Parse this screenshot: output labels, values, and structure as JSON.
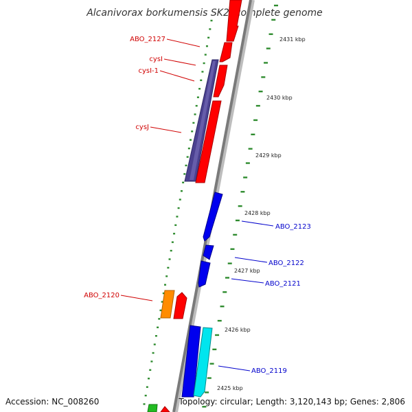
{
  "title": "Alcanivorax borkumensis SK2, complete genome",
  "accession": "Accession: NC_008260",
  "topology": "Topology: circular; Length: 3,120,143 bp; Genes: 2,806",
  "colors": {
    "backbone": "#808080",
    "tick": "#2e8b2e",
    "forward_label": "#d00000",
    "reverse_label": "#0000cc"
  },
  "ticks": [
    {
      "label": "2431 kbp"
    },
    {
      "label": "2430 kbp"
    },
    {
      "label": "2429 kbp"
    },
    {
      "label": "2428 kbp"
    },
    {
      "label": "2427 kbp"
    },
    {
      "label": "2426 kbp"
    },
    {
      "label": "2425 kbp"
    }
  ],
  "labels": [
    {
      "text": "ABO_2127",
      "color": "#d00000"
    },
    {
      "text": "cysI",
      "color": "#d00000"
    },
    {
      "text": "cysI-1",
      "color": "#d00000"
    },
    {
      "text": "cysJ",
      "color": "#d00000"
    },
    {
      "text": "ABO_2123",
      "color": "#0000cc"
    },
    {
      "text": "ABO_2122",
      "color": "#0000cc"
    },
    {
      "text": "ABO_2121",
      "color": "#0000cc"
    },
    {
      "text": "ABO_2120",
      "color": "#d00000"
    },
    {
      "text": "ABO_2119",
      "color": "#0000cc"
    }
  ],
  "features": [
    {
      "name": "gene-red",
      "color": "#ff0000"
    },
    {
      "name": "gene-purple",
      "color": "#4b4190"
    },
    {
      "name": "gene-blue",
      "color": "#0000ee"
    },
    {
      "name": "gene-orange",
      "color": "#ff8c00"
    },
    {
      "name": "gene-cyan",
      "color": "#00e5ee"
    },
    {
      "name": "gene-green",
      "color": "#22bb22"
    }
  ]
}
